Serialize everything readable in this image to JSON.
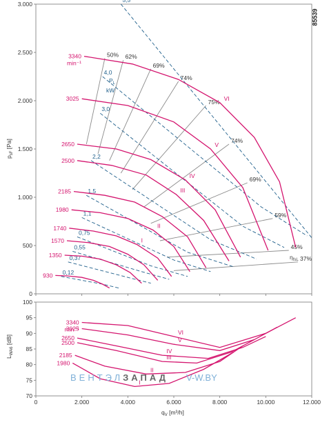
{
  "figure_id": "85539",
  "colors": {
    "speed": "#d4146e",
    "power": "#1f5f8b",
    "eff": "#8a8a8a",
    "frame": "#777777"
  },
  "watermark": {
    "a": "ВЕНТЭЛ",
    "b": "ЗАПАД",
    "c": "V-W.BY"
  },
  "chart_data": [
    {
      "type": "line",
      "xlabel": "q",
      "xlabel_sub": "V",
      "xlabel_unit": " [m³/h]",
      "ylabel": "p",
      "ylabel_sub": "sF",
      "ylabel_unit": " [Pa]",
      "xlim": [
        0,
        12000
      ],
      "ylim": [
        0,
        3000
      ],
      "xticks": [
        0,
        2000,
        4000,
        6000,
        8000,
        10000,
        12000
      ],
      "xtick_labels": [
        "0",
        "2.000",
        "4.000",
        "6.000",
        "8.000",
        "10.000",
        "12.000"
      ],
      "yticks": [
        0,
        500,
        1000,
        1500,
        2000,
        2500,
        3000
      ],
      "ytick_labels": [
        "0",
        "500",
        "1.000",
        "1.500",
        "2.000",
        "2.500",
        "3.000"
      ],
      "speed_unit": "min⁻¹",
      "series": [
        {
          "name": "3340",
          "x": [
            2100,
            4200,
            6200,
            8000,
            9500,
            10600,
            11300
          ],
          "y": [
            2460,
            2380,
            2220,
            1980,
            1620,
            1160,
            480
          ]
        },
        {
          "name": "3025",
          "x": [
            2000,
            4000,
            6000,
            7600,
            9000,
            10100
          ],
          "y": [
            2020,
            1950,
            1780,
            1500,
            1100,
            450
          ]
        },
        {
          "name": "2650",
          "x": [
            1800,
            3500,
            5000,
            6500,
            7800,
            8900
          ],
          "y": [
            1550,
            1500,
            1390,
            1180,
            870,
            380
          ]
        },
        {
          "name": "2500",
          "x": [
            1800,
            3300,
            4800,
            6100,
            7300,
            8400
          ],
          "y": [
            1380,
            1330,
            1230,
            1030,
            760,
            340
          ]
        },
        {
          "name": "2185",
          "x": [
            1650,
            3000,
            4300,
            5500,
            6600,
            7400
          ],
          "y": [
            1060,
            1020,
            950,
            800,
            590,
            270
          ]
        },
        {
          "name": "1980",
          "x": [
            1550,
            2800,
            4000,
            5100,
            6000,
            6700
          ],
          "y": [
            870,
            840,
            780,
            660,
            490,
            230
          ]
        },
        {
          "name": "1740",
          "x": [
            1450,
            2500,
            3500,
            4400,
            5300,
            5900
          ],
          "y": [
            680,
            650,
            600,
            510,
            370,
            180
          ]
        },
        {
          "name": "1570",
          "x": [
            1350,
            2300,
            3200,
            4000,
            4700,
            5300
          ],
          "y": [
            550,
            530,
            490,
            410,
            300,
            140
          ]
        },
        {
          "name": "1350",
          "x": [
            1250,
            2000,
            2800,
            3500,
            4100,
            4600
          ],
          "y": [
            400,
            390,
            360,
            300,
            220,
            110
          ]
        },
        {
          "name": "930",
          "x": [
            850,
            1400,
            2000,
            2500,
            2900,
            3200
          ],
          "y": [
            190,
            185,
            170,
            140,
            100,
            60
          ]
        }
      ],
      "power_lines": [
        {
          "label": "5,5",
          "x": [
            3700,
            12000
          ],
          "y": [
            3000,
            580
          ]
        },
        {
          "label": "4,0",
          "x": [
            2900,
            9800,
            11800
          ],
          "y": [
            2250,
            900,
            600
          ]
        },
        {
          "label": "3,0",
          "x": [
            2800,
            9000,
            10800
          ],
          "y": [
            1870,
            700,
            480
          ]
        },
        {
          "label": "2,2",
          "x": [
            2400,
            7600,
            9600
          ],
          "y": [
            1380,
            560,
            360
          ]
        },
        {
          "label": "1,5",
          "x": [
            2200,
            6600,
            8600
          ],
          "y": [
            1020,
            430,
            280
          ]
        },
        {
          "label": "1,1",
          "x": [
            2000,
            6000,
            7600
          ],
          "y": [
            790,
            350,
            230
          ]
        },
        {
          "label": "0,75",
          "x": [
            1800,
            5000,
            6600
          ],
          "y": [
            590,
            290,
            180
          ]
        },
        {
          "label": "0,55",
          "x": [
            1600,
            4600,
            5800
          ],
          "y": [
            440,
            230,
            150
          ]
        },
        {
          "label": "0,37",
          "x": [
            1400,
            4000,
            5000
          ],
          "y": [
            330,
            170,
            110
          ]
        },
        {
          "label": "0,12",
          "x": [
            1100,
            2900,
            3600
          ],
          "y": [
            180,
            100,
            60
          ]
        }
      ],
      "power_label": {
        "symbol": "P",
        "sub": "L",
        "unit": "kW"
      },
      "efficiency_lines": [
        {
          "label": "50%",
          "x": [
            2200,
            3000
          ],
          "y": [
            1550,
            2440
          ]
        },
        {
          "label": "62%",
          "x": [
            2700,
            3800
          ],
          "y": [
            1450,
            2420
          ]
        },
        {
          "label": "69%",
          "x": [
            3200,
            5000
          ],
          "y": [
            1380,
            2330
          ]
        },
        {
          "label": "74%",
          "x": [
            3700,
            6200
          ],
          "y": [
            1250,
            2200
          ]
        },
        {
          "label": "75%",
          "x": [
            4200,
            7400
          ],
          "y": [
            1080,
            1950
          ]
        },
        {
          "label": "74%",
          "x": [
            4700,
            8400
          ],
          "y": [
            900,
            1550
          ]
        },
        {
          "label": "69%",
          "x": [
            5000,
            9200
          ],
          "y": [
            730,
            1150
          ]
        },
        {
          "label": "59%",
          "x": [
            5400,
            10300
          ],
          "y": [
            550,
            780
          ]
        },
        {
          "label": "45%",
          "x": [
            5700,
            11000
          ],
          "y": [
            380,
            450
          ]
        },
        {
          "label": "37%",
          "x": [
            6000,
            11400
          ],
          "y": [
            240,
            330
          ]
        }
      ],
      "eff_symbol": {
        "symbol": "η",
        "sub": "fsL"
      },
      "zone_labels": [
        "I",
        "II",
        "III",
        "IV",
        "V",
        "VI"
      ]
    },
    {
      "type": "line",
      "xlabel": "q",
      "xlabel_sub": "V",
      "xlabel_unit": " [m³/h]",
      "ylabel": "L",
      "ylabel_sub": "WA6",
      "ylabel_unit": " [dB]",
      "xlim": [
        0,
        12000
      ],
      "ylim": [
        70,
        100
      ],
      "xticks": [
        0,
        2000,
        4000,
        6000,
        8000,
        10000,
        12000
      ],
      "xtick_labels": [
        "0",
        "2.000",
        "4.000",
        "6.000",
        "8.000",
        "10.000",
        "12.000"
      ],
      "yticks": [
        70,
        75,
        80,
        85,
        90,
        95,
        100
      ],
      "ytick_labels": [
        "70",
        "75",
        "80",
        "85",
        "90",
        "95",
        "100"
      ],
      "speed_unit": "min⁻¹",
      "series": [
        {
          "name": "3340",
          "x": [
            2000,
            4000,
            6000,
            8000,
            10000,
            11300
          ],
          "y": [
            93.5,
            92.5,
            89,
            85.5,
            90,
            95
          ]
        },
        {
          "name": "3025",
          "x": [
            2000,
            4000,
            6000,
            8000,
            9500,
            10500
          ],
          "y": [
            91.5,
            89.5,
            86.5,
            84.5,
            88,
            92
          ]
        },
        {
          "name": "2650",
          "x": [
            1800,
            3500,
            5500,
            7500,
            9000,
            10000
          ],
          "y": [
            88.5,
            86,
            83,
            82,
            85.5,
            89
          ]
        },
        {
          "name": "2500",
          "x": [
            1800,
            3500,
            5500,
            7000,
            8500,
            9500
          ],
          "y": [
            87,
            84.5,
            81,
            80.5,
            84,
            88
          ]
        },
        {
          "name": "2185",
          "x": [
            1700,
            3000,
            4800,
            6500,
            8000,
            9000
          ],
          "y": [
            83,
            79.5,
            77,
            77.5,
            81,
            86
          ]
        },
        {
          "name": "1980",
          "x": [
            1600,
            2800,
            4300,
            5800,
            7300,
            8600
          ],
          "y": [
            80.5,
            75.5,
            73,
            74,
            78.5,
            84
          ]
        }
      ],
      "zone_labels": [
        "I",
        "II",
        "III",
        "IV",
        "V",
        "VI"
      ]
    }
  ]
}
